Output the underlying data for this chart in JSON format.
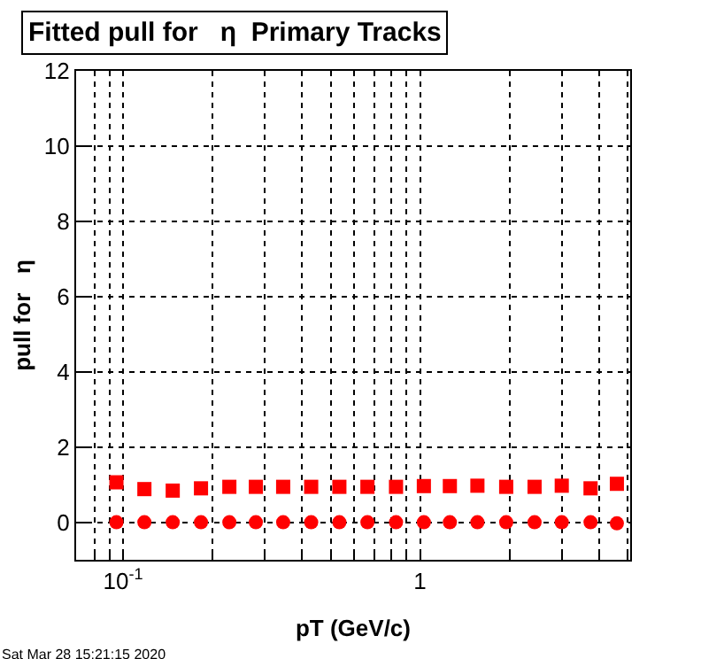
{
  "chart_data": {
    "type": "scatter",
    "title": "Fitted pull for   η  Primary Tracks",
    "xlabel": "pT (GeV/c)",
    "ylabel": "pull for   η",
    "x": [
      0.095,
      0.118,
      0.147,
      0.183,
      0.228,
      0.28,
      0.346,
      0.43,
      0.535,
      0.665,
      0.83,
      1.03,
      1.26,
      1.56,
      1.95,
      2.43,
      3.0,
      3.75,
      4.6
    ],
    "series": [
      {
        "color": "#ff0000",
        "marker": "square",
        "values": [
          1.06,
          0.88,
          0.84,
          0.9,
          0.94,
          0.94,
          0.94,
          0.94,
          0.94,
          0.94,
          0.94,
          0.96,
          0.96,
          0.97,
          0.94,
          0.94,
          0.97,
          0.9,
          1.02
        ]
      },
      {
        "color": "#ff0000",
        "marker": "circle",
        "values": [
          0,
          0,
          0,
          0,
          0,
          0,
          0,
          0,
          0,
          0,
          0,
          0,
          0,
          0,
          0,
          0,
          0,
          0,
          -0.03
        ]
      }
    ],
    "log": "x",
    "xlim": [
      0.0695,
      5.1
    ],
    "ylim": [
      -1,
      12
    ],
    "xticks": [
      {
        "value": 0.07,
        "label": null
      },
      {
        "value": 0.08,
        "label": null
      },
      {
        "value": 0.09,
        "label": null
      },
      {
        "value": 0.1,
        "label": "10$^{-1}$"
      },
      {
        "value": 0.2,
        "label": null
      },
      {
        "value": 0.3,
        "label": null
      },
      {
        "value": 0.4,
        "label": null
      },
      {
        "value": 0.5,
        "label": null
      },
      {
        "value": 0.6,
        "label": null
      },
      {
        "value": 0.7,
        "label": null
      },
      {
        "value": 0.8,
        "label": null
      },
      {
        "value": 0.9,
        "label": null
      },
      {
        "value": 1,
        "label": "1"
      },
      {
        "value": 2,
        "label": null
      },
      {
        "value": 3,
        "label": null
      },
      {
        "value": 4,
        "label": null
      },
      {
        "value": 5,
        "label": null
      }
    ],
    "yticks": [
      0,
      2,
      4,
      6,
      8,
      10,
      12
    ],
    "grid": true,
    "annotations": [
      "Sat Mar 28 15:21:15 2020"
    ]
  }
}
